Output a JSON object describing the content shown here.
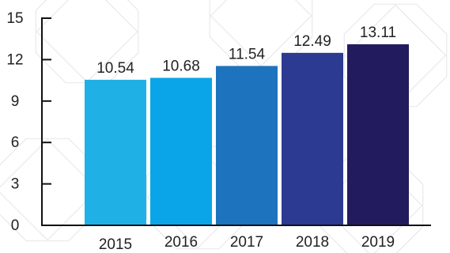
{
  "chart_data": {
    "type": "bar",
    "categories": [
      "2015",
      "2016",
      "2017",
      "2018",
      "2019"
    ],
    "values": [
      10.54,
      10.68,
      11.54,
      12.49,
      13.11
    ],
    "value_labels": [
      "10.54",
      "10.68",
      "11.54",
      "12.49",
      "13.11"
    ],
    "title": "",
    "xlabel": "",
    "ylabel": "",
    "ylim": [
      0,
      15
    ],
    "yticks": [
      0,
      3,
      6,
      9,
      12,
      15
    ],
    "ytick_labels": [
      "0",
      "3",
      "6",
      "9",
      "12",
      "15"
    ],
    "grid": false,
    "legend": "none",
    "bar_colors": [
      "#1FB1E6",
      "#0AA5E8",
      "#1E73BE",
      "#2C3A92",
      "#221C5E"
    ],
    "background": "#FFFFFF"
  }
}
